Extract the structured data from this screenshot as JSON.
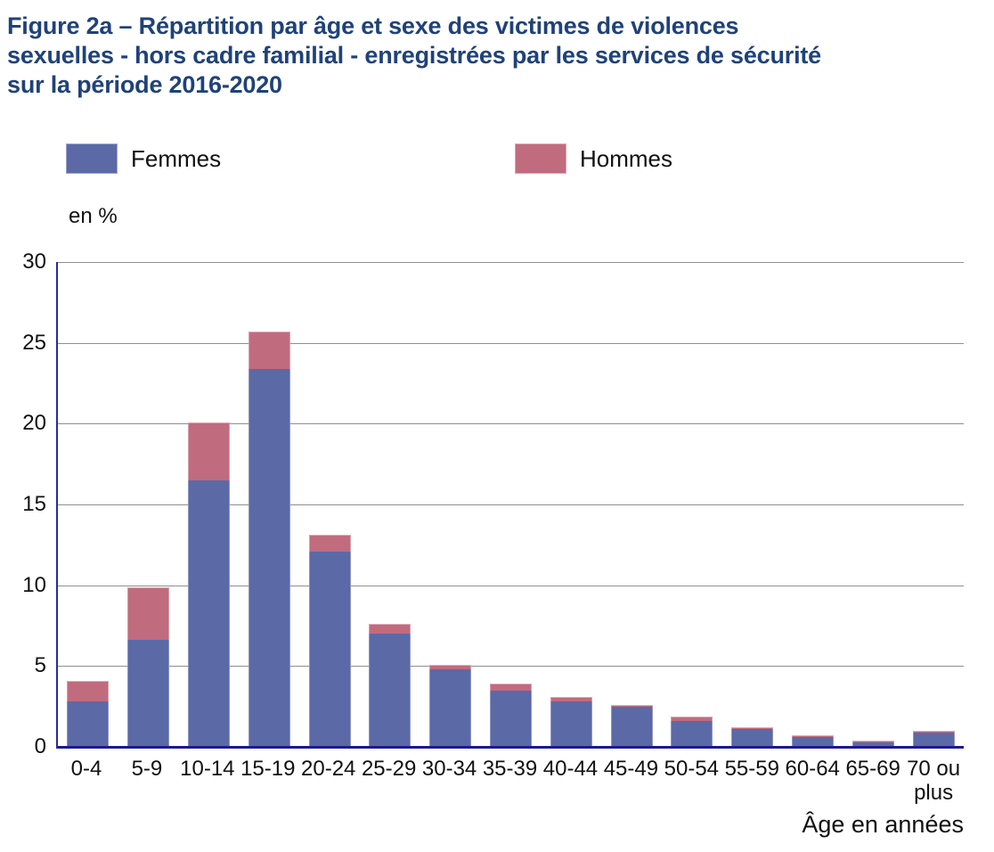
{
  "title": {
    "lines": [
      "Figure 2a – Répartition par âge et sexe des victimes de violences",
      "sexuelles - hors cadre familial - enregistrées par les services de sécurité",
      "sur la période 2016-2020"
    ]
  },
  "legend": {
    "items": [
      {
        "label": "Femmes",
        "color": "#5c69a7"
      },
      {
        "label": "Hommes",
        "color": "#c16b7e"
      }
    ]
  },
  "unit_label": "en %",
  "xaxis_title": "Âge en années",
  "colors": {
    "title": "#1f4279",
    "femmes": "#5c69a7",
    "hommes": "#c16b7e",
    "y_axis_line": "#2a2aa5",
    "x_baseline": "#1b1b8e",
    "gridline": "#8f8f8f"
  },
  "chart_data": {
    "type": "bar",
    "stacked": true,
    "title": "Répartition par âge et sexe des victimes de violences sexuelles - hors cadre familial - enregistrées par les services de sécurité sur la période 2016-2020",
    "xlabel": "Âge en années",
    "ylabel": "en %",
    "ylim": [
      0,
      30
    ],
    "ytick_step": 5,
    "grid": true,
    "legend_position": "top",
    "categories": [
      "0-4",
      "5-9",
      "10-14",
      "15-19",
      "20-24",
      "25-29",
      "30-34",
      "35-39",
      "40-44",
      "45-49",
      "50-54",
      "55-59",
      "60-64",
      "65-69",
      "70 ou plus"
    ],
    "series": [
      {
        "name": "Femmes",
        "color": "#5c69a7",
        "values": [
          2.8,
          6.6,
          16.5,
          23.4,
          12.1,
          7.0,
          4.8,
          3.5,
          2.8,
          2.5,
          1.6,
          1.1,
          0.6,
          0.3,
          0.9
        ]
      },
      {
        "name": "Hommes",
        "color": "#c16b7e",
        "values": [
          1.3,
          3.3,
          3.6,
          2.3,
          1.0,
          0.6,
          0.3,
          0.4,
          0.3,
          0.1,
          0.3,
          0.1,
          0.1,
          0.1,
          0.1
        ]
      }
    ]
  }
}
